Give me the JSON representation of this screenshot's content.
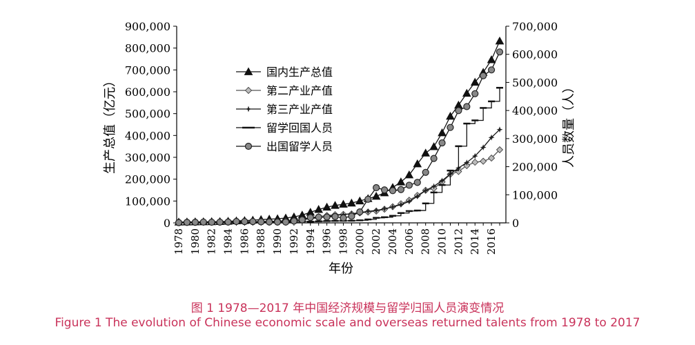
{
  "chart_data": {
    "type": "line",
    "xlabel": "年份",
    "ylabel_left": "生产总值（亿元）",
    "ylabel_right": "人员数量（人）",
    "ylim_left": [
      0,
      900000
    ],
    "ylim_right": [
      0,
      700000
    ],
    "yticks_left": [
      "0",
      "100,000",
      "200,000",
      "300,000",
      "400,000",
      "500,000",
      "600,000",
      "700,000",
      "800,000",
      "900,000"
    ],
    "yticks_right": [
      "0",
      "100,000",
      "200,000",
      "300,000",
      "400,000",
      "500,000",
      "600,000",
      "700,000"
    ],
    "x": [
      1978,
      1979,
      1980,
      1981,
      1982,
      1983,
      1984,
      1985,
      1986,
      1987,
      1988,
      1989,
      1990,
      1991,
      1992,
      1993,
      1994,
      1995,
      1996,
      1997,
      1998,
      1999,
      2000,
      2001,
      2002,
      2003,
      2004,
      2005,
      2006,
      2007,
      2008,
      2009,
      2010,
      2011,
      2012,
      2013,
      2014,
      2015,
      2016,
      2017
    ],
    "xtick_labels": [
      "1978",
      "1980",
      "1982",
      "1984",
      "1986",
      "1988",
      "1990",
      "1992",
      "1994",
      "1996",
      "1998",
      "2000",
      "2002",
      "2004",
      "2006",
      "2008",
      "2010",
      "2012",
      "2014",
      "2016"
    ],
    "legend_position": "top-left",
    "series": [
      {
        "name": "国内生产总值",
        "axis": "left",
        "marker": "triangle",
        "values": [
          3679,
          4101,
          4588,
          4936,
          5373,
          6021,
          7279,
          9099,
          10376,
          12175,
          15180,
          17180,
          18873,
          22006,
          27195,
          35673,
          48638,
          61340,
          71814,
          79715,
          85196,
          90564,
          100280,
          110863,
          121717,
          137422,
          161840,
          187319,
          219439,
          270092,
          319245,
          348518,
          412119,
          487940,
          538580,
          592963,
          643563,
          688858,
          746395,
          832036
        ]
      },
      {
        "name": "第二产业产值",
        "axis": "left",
        "marker": "diamond",
        "values": [
          1745,
          1914,
          2192,
          2256,
          2383,
          2646,
          3106,
          3867,
          4585,
          5778,
          6587,
          7278,
          7717,
          9102,
          11700,
          16454,
          22445,
          28679,
          33835,
          37543,
          39004,
          41034,
          45556,
          49512,
          53897,
          62436,
          73904,
          87598,
          103720,
          125831,
          149003,
          157639,
          187383,
          222338,
          235162,
          261956,
          277572,
          282040,
          296547,
          334623
        ]
      },
      {
        "name": "第三产业产值",
        "axis": "left",
        "marker": "star",
        "values": [
          905,
          987,
          1095,
          1271,
          1490,
          1732,
          2345,
          3034,
          3611,
          4404,
          5401,
          6330,
          7263,
          8863,
          10957,
          14166,
          19007,
          24007,
          29152,
          33896,
          38086,
          41724,
          47076,
          52681,
          56848,
          64442,
          72815,
          83510,
          98013,
          121305,
          148218,
          167216,
          192915,
          223707,
          251178,
          275887,
          305767,
          345496,
          390828,
          427032
        ]
      },
      {
        "name": "留学回国人员",
        "axis": "right",
        "marker": "dash",
        "values": [
          248,
          231,
          162,
          1143,
          2116,
          2303,
          2920,
          1424,
          1388,
          1605,
          3000,
          1753,
          1593,
          2069,
          3611,
          5128,
          4230,
          5750,
          6570,
          7130,
          7379,
          7748,
          9121,
          12243,
          17945,
          20152,
          25117,
          34987,
          42000,
          44000,
          69300,
          108300,
          134800,
          186200,
          272900,
          353500,
          364800,
          409100,
          432500,
          480900
        ]
      },
      {
        "name": "出国留学人员",
        "axis": "right",
        "marker": "circle",
        "values": [
          860,
          1777,
          2124,
          2922,
          2326,
          2633,
          3073,
          4888,
          4676,
          4703,
          3786,
          3329,
          2950,
          2900,
          6540,
          10742,
          19071,
          20381,
          20905,
          22410,
          17622,
          23749,
          38989,
          83973,
          125179,
          117307,
          114682,
          118515,
          134000,
          144000,
          179800,
          229300,
          284700,
          339700,
          399600,
          413900,
          459800,
          523700,
          544500,
          608400
        ]
      }
    ]
  },
  "caption": {
    "zh": "图 1  1978—2017 年中国经济规模与留学归国人员演变情况",
    "en": "Figure 1  The evolution of Chinese economic scale and overseas returned talents from 1978 to 2017"
  }
}
